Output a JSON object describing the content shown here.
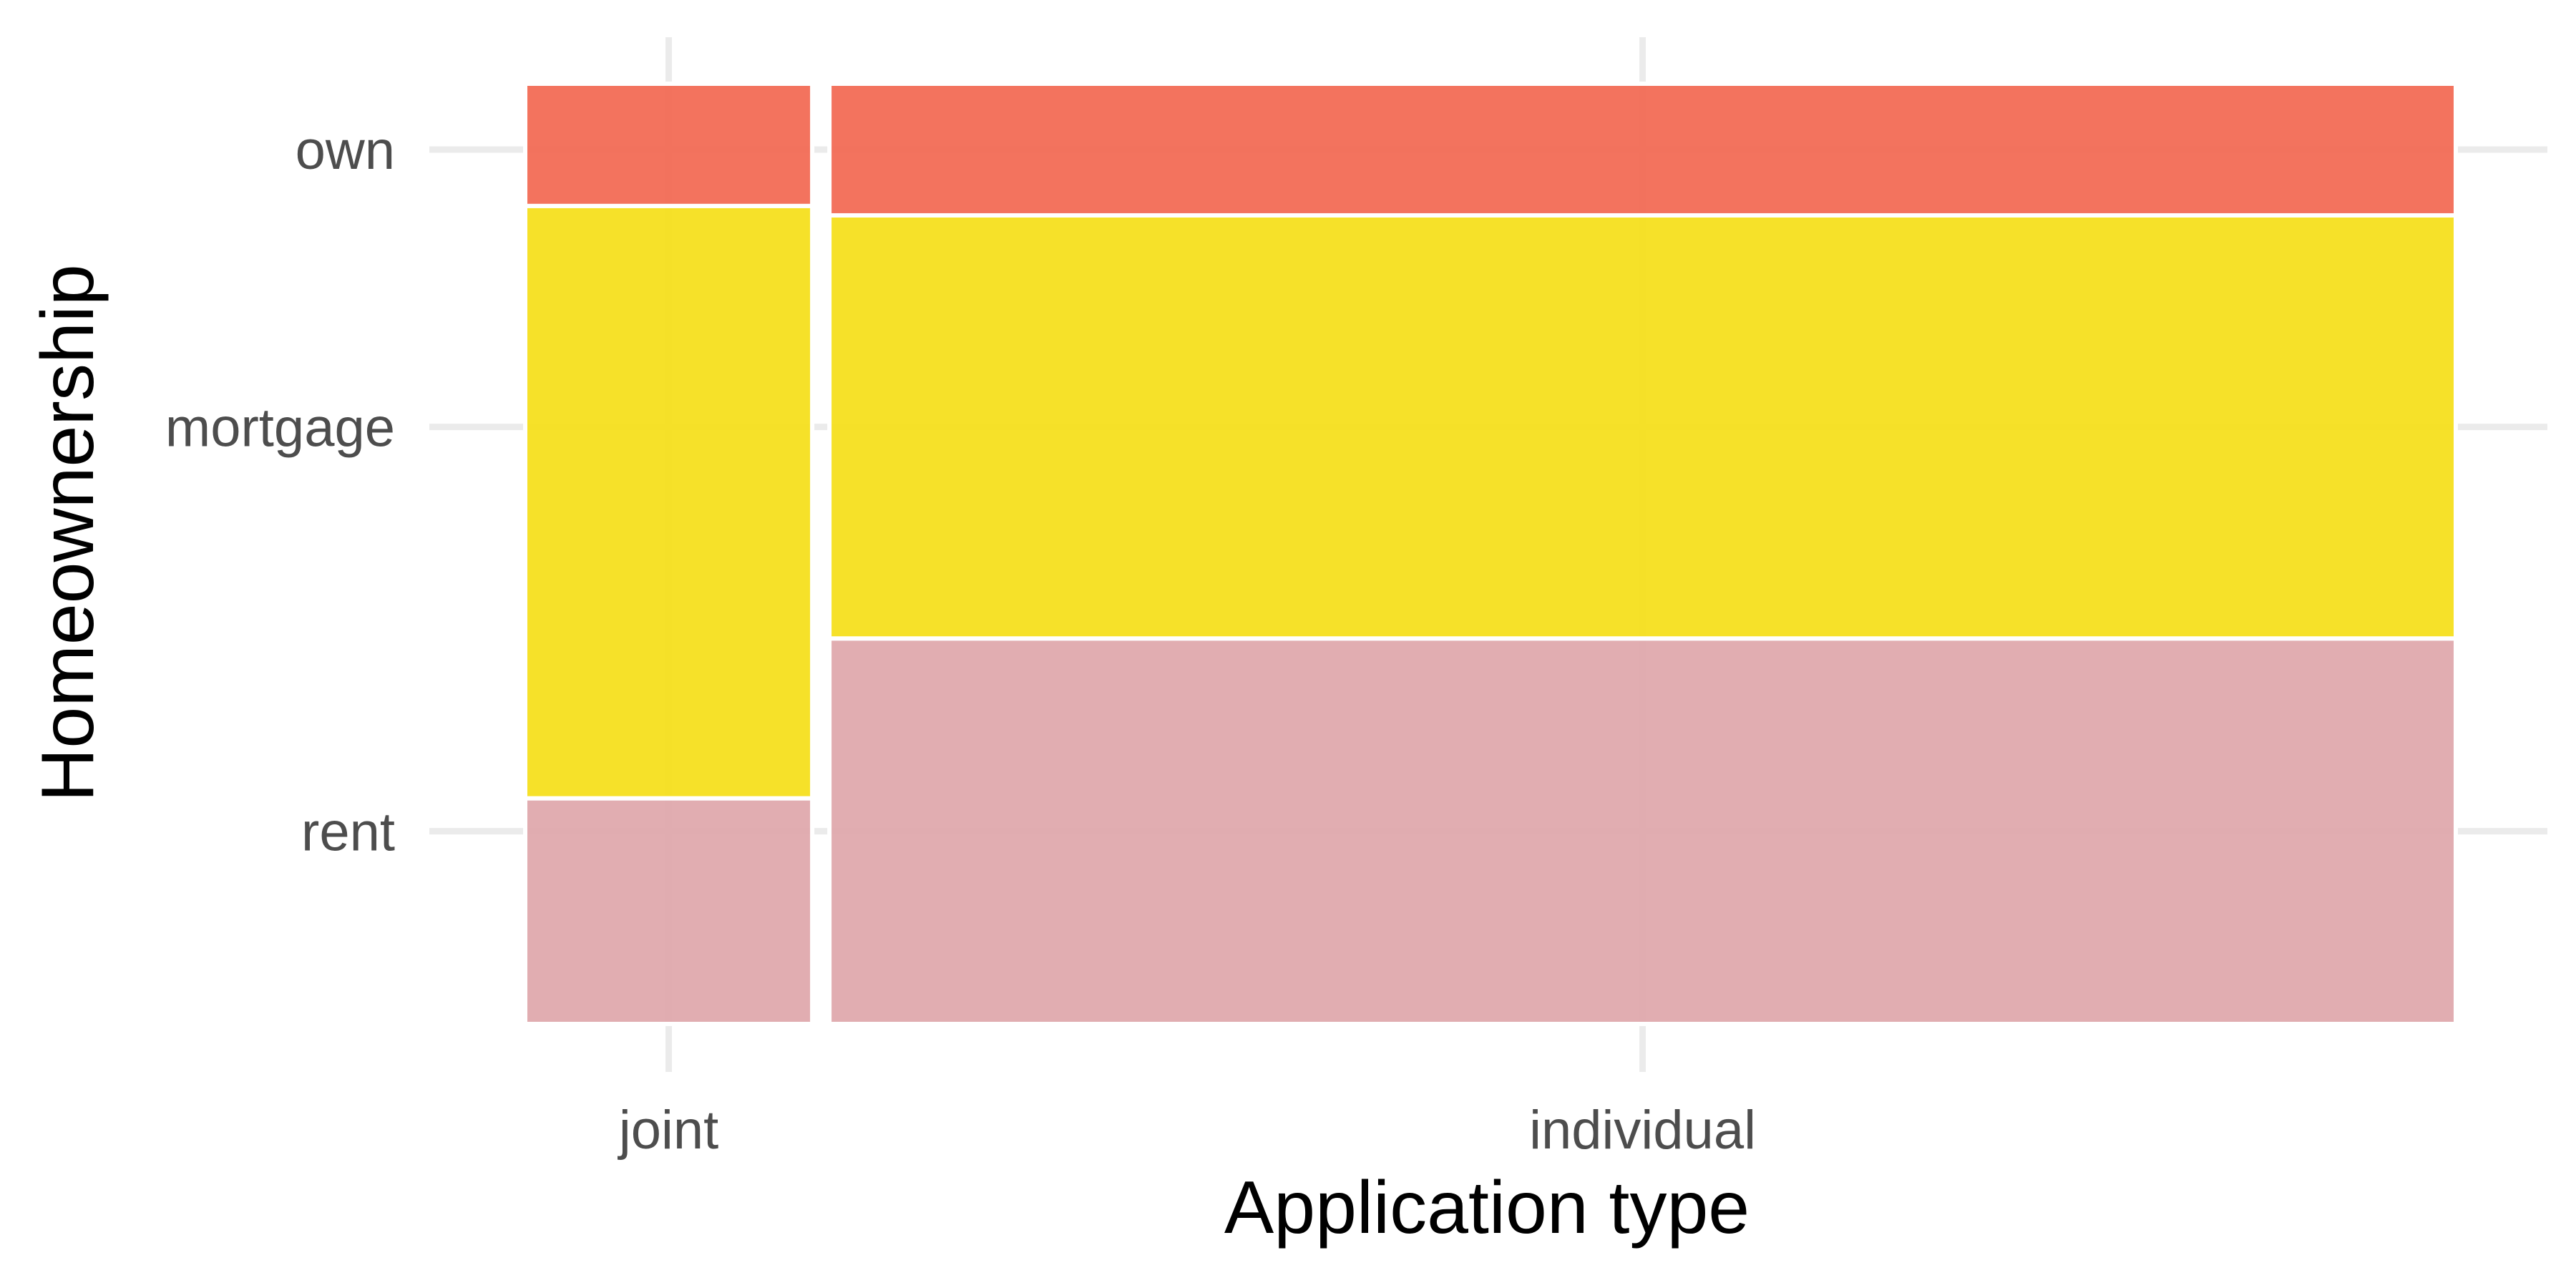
{
  "chart_data": {
    "type": "mosaic",
    "xlabel": "Application type",
    "ylabel": "Homeownership",
    "x_categories": [
      {
        "label": "joint",
        "share": 0.15
      },
      {
        "label": "individual",
        "share": 0.85
      }
    ],
    "y_categories": [
      "rent",
      "mortgage",
      "own"
    ],
    "proportions": {
      "joint": {
        "rent": 0.24,
        "mortgage": 0.63,
        "own": 0.13
      },
      "individual": {
        "rent": 0.41,
        "mortgage": 0.45,
        "own": 0.14
      }
    },
    "colors": {
      "own": "#f26b55",
      "mortgage": "#f5df1e",
      "rent": "#dfa9ad"
    },
    "grid": true,
    "legend": "none"
  }
}
